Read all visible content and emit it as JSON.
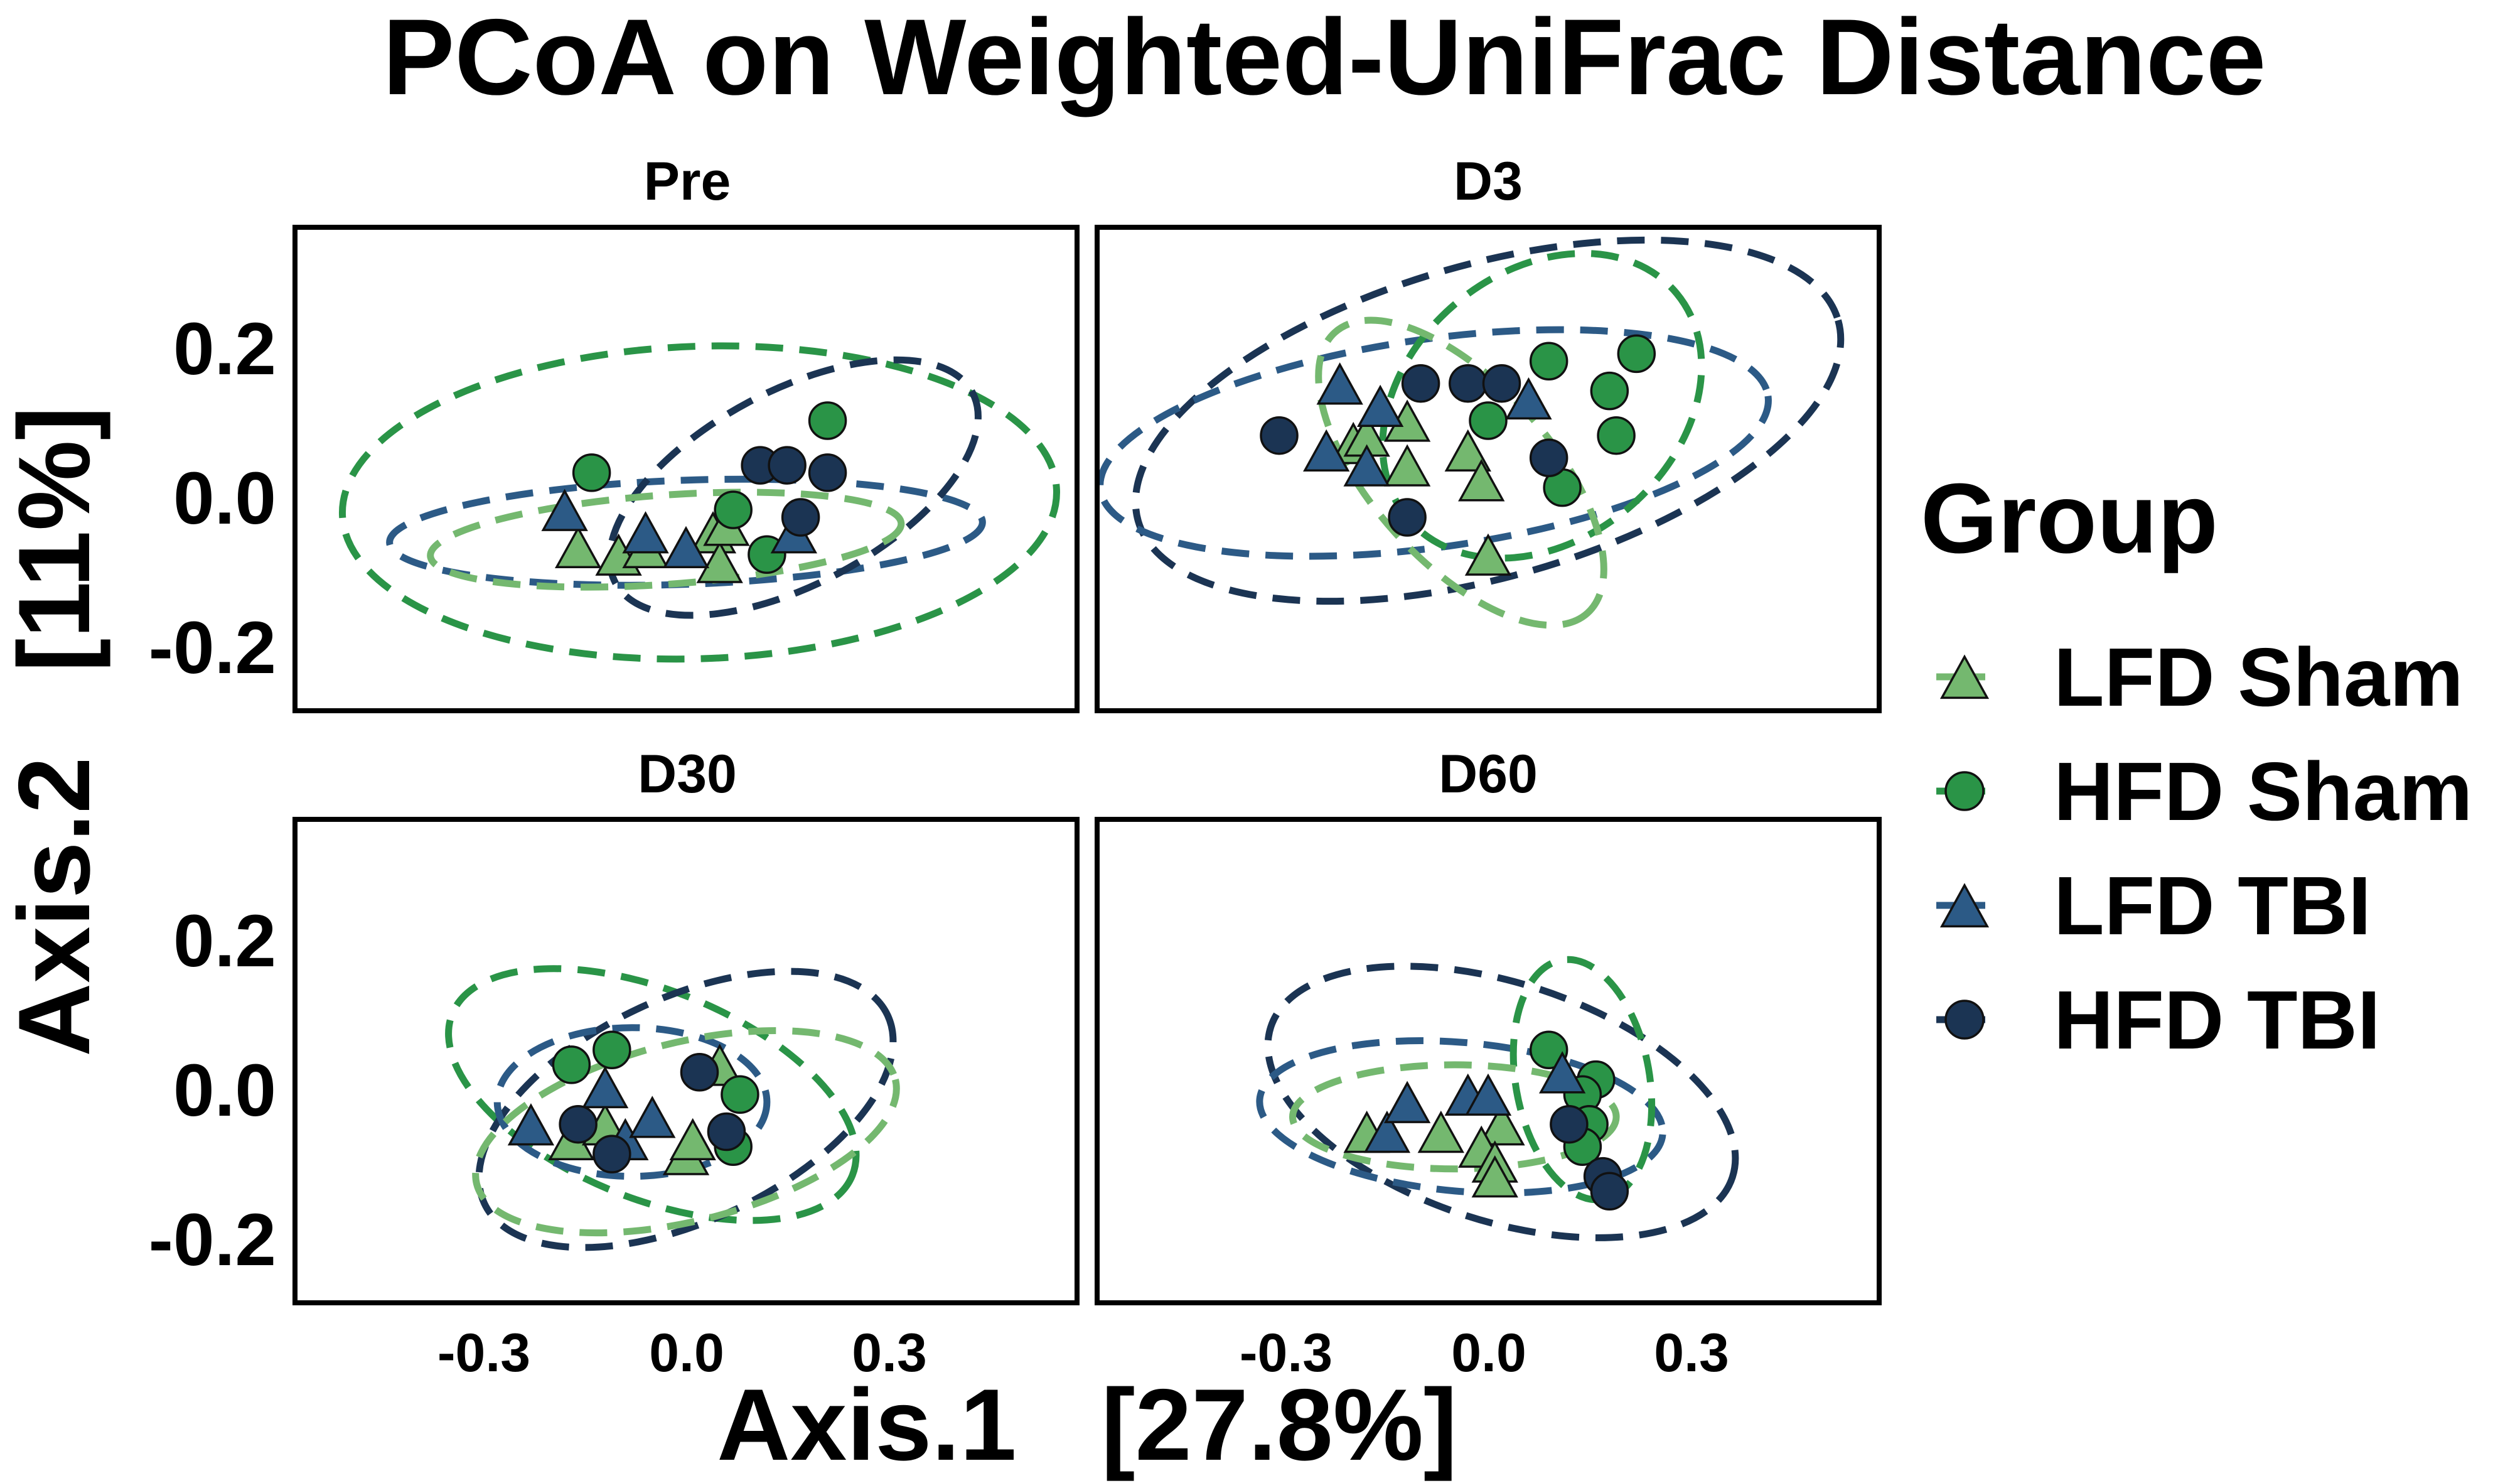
{
  "chart_data": {
    "type": "scatter",
    "title": "PCoA on Weighted-UniFrac Distance",
    "xlabel": "Axis.1   [27.8%]",
    "ylabel": "Axis.2   [11%]",
    "xlim": [
      -0.58,
      0.58
    ],
    "ylim": [
      -0.28,
      0.37
    ],
    "x_ticks": [
      -0.3,
      0.0,
      0.3
    ],
    "x_tick_labels": [
      "-0.3",
      "0.0",
      "0.3"
    ],
    "y_ticks": [
      -0.2,
      0.0,
      0.2
    ],
    "y_tick_labels": [
      "-0.2",
      "0.0",
      "0.2"
    ],
    "grid": false,
    "legend": {
      "title": "Group",
      "placement": "right"
    },
    "groups": [
      {
        "name": "LFD Sham",
        "marker": "triangle",
        "color": "#74b86f"
      },
      {
        "name": "HFD Sham",
        "marker": "circle",
        "color": "#2a9447"
      },
      {
        "name": "LFD TBI",
        "marker": "triangle",
        "color": "#2c5a86"
      },
      {
        "name": "HFD TBI",
        "marker": "circle",
        "color": "#1b3453"
      }
    ],
    "panels": [
      {
        "label": "Pre",
        "ellipses": [
          {
            "group": "HFD Sham",
            "cx": 0.02,
            "cy": 0.0,
            "rx": 0.53,
            "ry": 0.21,
            "angle": 2
          },
          {
            "group": "LFD TBI",
            "cx": 0.0,
            "cy": -0.04,
            "rx": 0.44,
            "ry": 0.07,
            "angle": 2
          },
          {
            "group": "HFD TBI",
            "cx": 0.16,
            "cy": 0.02,
            "rx": 0.3,
            "ry": 0.13,
            "angle": 28
          },
          {
            "group": "LFD Sham",
            "cx": -0.03,
            "cy": -0.05,
            "rx": 0.35,
            "ry": 0.06,
            "angle": 4
          }
        ],
        "points": [
          {
            "group": "LFD Sham",
            "x": -0.16,
            "y": -0.06
          },
          {
            "group": "LFD Sham",
            "x": -0.1,
            "y": -0.07
          },
          {
            "group": "LFD Sham",
            "x": -0.06,
            "y": -0.06
          },
          {
            "group": "LFD Sham",
            "x": 0.04,
            "y": -0.04
          },
          {
            "group": "LFD Sham",
            "x": 0.05,
            "y": -0.08
          },
          {
            "group": "LFD Sham",
            "x": 0.06,
            "y": -0.03
          },
          {
            "group": "HFD Sham",
            "x": -0.14,
            "y": 0.04
          },
          {
            "group": "HFD Sham",
            "x": 0.07,
            "y": -0.01
          },
          {
            "group": "HFD Sham",
            "x": 0.12,
            "y": -0.07
          },
          {
            "group": "HFD Sham",
            "x": 0.21,
            "y": 0.11
          },
          {
            "group": "LFD TBI",
            "x": -0.18,
            "y": -0.01
          },
          {
            "group": "LFD TBI",
            "x": -0.06,
            "y": -0.04
          },
          {
            "group": "LFD TBI",
            "x": 0.0,
            "y": -0.06
          },
          {
            "group": "LFD TBI",
            "x": 0.16,
            "y": -0.04
          },
          {
            "group": "HFD TBI",
            "x": 0.11,
            "y": 0.05
          },
          {
            "group": "HFD TBI",
            "x": 0.15,
            "y": 0.05
          },
          {
            "group": "HFD TBI",
            "x": 0.21,
            "y": 0.04
          },
          {
            "group": "HFD TBI",
            "x": 0.17,
            "y": -0.02
          }
        ]
      },
      {
        "label": "D3",
        "ellipses": [
          {
            "group": "HFD TBI",
            "cx": 0.0,
            "cy": 0.11,
            "rx": 0.54,
            "ry": 0.21,
            "angle": 16
          },
          {
            "group": "LFD TBI",
            "cx": -0.08,
            "cy": 0.08,
            "rx": 0.5,
            "ry": 0.14,
            "angle": 8
          },
          {
            "group": "HFD Sham",
            "cx": 0.08,
            "cy": 0.13,
            "rx": 0.26,
            "ry": 0.18,
            "angle": 40
          },
          {
            "group": "LFD Sham",
            "cx": -0.04,
            "cy": 0.04,
            "rx": 0.28,
            "ry": 0.12,
            "angle": -48
          }
        ],
        "points": [
          {
            "group": "LFD Sham",
            "x": -0.2,
            "y": 0.08
          },
          {
            "group": "LFD Sham",
            "x": -0.18,
            "y": 0.09
          },
          {
            "group": "LFD Sham",
            "x": -0.12,
            "y": 0.11
          },
          {
            "group": "LFD Sham",
            "x": -0.12,
            "y": 0.05
          },
          {
            "group": "LFD Sham",
            "x": -0.03,
            "y": 0.07
          },
          {
            "group": "LFD Sham",
            "x": -0.01,
            "y": 0.03
          },
          {
            "group": "LFD Sham",
            "x": 0.0,
            "y": -0.07
          },
          {
            "group": "HFD Sham",
            "x": 0.09,
            "y": 0.19
          },
          {
            "group": "HFD Sham",
            "x": 0.0,
            "y": 0.11
          },
          {
            "group": "HFD Sham",
            "x": 0.18,
            "y": 0.15
          },
          {
            "group": "HFD Sham",
            "x": 0.22,
            "y": 0.2
          },
          {
            "group": "HFD Sham",
            "x": 0.19,
            "y": 0.09
          },
          {
            "group": "HFD Sham",
            "x": 0.11,
            "y": 0.02
          },
          {
            "group": "LFD TBI",
            "x": -0.22,
            "y": 0.16
          },
          {
            "group": "LFD TBI",
            "x": -0.16,
            "y": 0.13
          },
          {
            "group": "LFD TBI",
            "x": -0.24,
            "y": 0.07
          },
          {
            "group": "LFD TBI",
            "x": -0.18,
            "y": 0.05
          },
          {
            "group": "LFD TBI",
            "x": 0.06,
            "y": 0.14
          },
          {
            "group": "HFD TBI",
            "x": -0.31,
            "y": 0.09
          },
          {
            "group": "HFD TBI",
            "x": -0.1,
            "y": 0.16
          },
          {
            "group": "HFD TBI",
            "x": -0.03,
            "y": 0.16
          },
          {
            "group": "HFD TBI",
            "x": 0.02,
            "y": 0.16
          },
          {
            "group": "HFD TBI",
            "x": 0.09,
            "y": 0.06
          },
          {
            "group": "HFD TBI",
            "x": -0.12,
            "y": -0.02
          }
        ]
      },
      {
        "label": "D30",
        "ellipses": [
          {
            "group": "HFD Sham",
            "cx": -0.05,
            "cy": 0.0,
            "rx": 0.32,
            "ry": 0.14,
            "angle": -22
          },
          {
            "group": "HFD TBI",
            "cx": 0.0,
            "cy": -0.02,
            "rx": 0.33,
            "ry": 0.15,
            "angle": 25
          },
          {
            "group": "LFD TBI",
            "cx": -0.08,
            "cy": -0.01,
            "rx": 0.2,
            "ry": 0.1,
            "angle": 0
          },
          {
            "group": "LFD Sham",
            "cx": 0.0,
            "cy": -0.05,
            "rx": 0.32,
            "ry": 0.12,
            "angle": 14
          }
        ],
        "points": [
          {
            "group": "LFD Sham",
            "x": -0.17,
            "y": -0.06
          },
          {
            "group": "LFD Sham",
            "x": -0.12,
            "y": -0.04
          },
          {
            "group": "LFD Sham",
            "x": 0.0,
            "y": -0.08
          },
          {
            "group": "LFD Sham",
            "x": 0.01,
            "y": -0.06
          },
          {
            "group": "LFD Sham",
            "x": 0.05,
            "y": 0.04
          },
          {
            "group": "HFD Sham",
            "x": -0.17,
            "y": 0.04
          },
          {
            "group": "HFD Sham",
            "x": -0.11,
            "y": 0.06
          },
          {
            "group": "HFD Sham",
            "x": 0.08,
            "y": 0.0
          },
          {
            "group": "HFD Sham",
            "x": 0.07,
            "y": -0.07
          },
          {
            "group": "LFD TBI",
            "x": -0.23,
            "y": -0.04
          },
          {
            "group": "LFD TBI",
            "x": -0.12,
            "y": 0.01
          },
          {
            "group": "LFD TBI",
            "x": -0.09,
            "y": -0.06
          },
          {
            "group": "LFD TBI",
            "x": -0.05,
            "y": -0.03
          },
          {
            "group": "HFD TBI",
            "x": -0.16,
            "y": -0.04
          },
          {
            "group": "HFD TBI",
            "x": -0.11,
            "y": -0.08
          },
          {
            "group": "HFD TBI",
            "x": 0.02,
            "y": 0.03
          },
          {
            "group": "HFD TBI",
            "x": 0.06,
            "y": -0.05
          }
        ]
      },
      {
        "label": "D60",
        "ellipses": [
          {
            "group": "HFD TBI",
            "cx": 0.02,
            "cy": -0.01,
            "rx": 0.36,
            "ry": 0.16,
            "angle": -18
          },
          {
            "group": "LFD TBI",
            "cx": -0.04,
            "cy": -0.03,
            "rx": 0.3,
            "ry": 0.1,
            "angle": -5
          },
          {
            "group": "HFD Sham",
            "cx": 0.14,
            "cy": 0.02,
            "rx": 0.18,
            "ry": 0.09,
            "angle": -80
          },
          {
            "group": "LFD Sham",
            "cx": -0.05,
            "cy": -0.03,
            "rx": 0.24,
            "ry": 0.07,
            "angle": 0
          }
        ],
        "points": [
          {
            "group": "LFD Sham",
            "x": -0.18,
            "y": -0.05
          },
          {
            "group": "LFD Sham",
            "x": -0.07,
            "y": -0.05
          },
          {
            "group": "LFD Sham",
            "x": 0.02,
            "y": -0.04
          },
          {
            "group": "LFD Sham",
            "x": -0.01,
            "y": -0.07
          },
          {
            "group": "LFD Sham",
            "x": 0.01,
            "y": -0.09
          },
          {
            "group": "LFD Sham",
            "x": 0.01,
            "y": -0.11
          },
          {
            "group": "HFD Sham",
            "x": 0.09,
            "y": 0.06
          },
          {
            "group": "HFD Sham",
            "x": 0.16,
            "y": 0.02
          },
          {
            "group": "HFD Sham",
            "x": 0.14,
            "y": 0.0
          },
          {
            "group": "HFD Sham",
            "x": 0.15,
            "y": -0.04
          },
          {
            "group": "HFD Sham",
            "x": 0.14,
            "y": -0.07
          },
          {
            "group": "LFD TBI",
            "x": -0.15,
            "y": -0.05
          },
          {
            "group": "LFD TBI",
            "x": -0.12,
            "y": -0.01
          },
          {
            "group": "LFD TBI",
            "x": -0.03,
            "y": 0.0
          },
          {
            "group": "LFD TBI",
            "x": 0.0,
            "y": 0.0
          },
          {
            "group": "LFD TBI",
            "x": 0.11,
            "y": 0.03
          },
          {
            "group": "HFD TBI",
            "x": 0.12,
            "y": -0.04
          },
          {
            "group": "HFD TBI",
            "x": 0.17,
            "y": -0.11
          },
          {
            "group": "HFD TBI",
            "x": 0.18,
            "y": -0.13
          }
        ]
      }
    ]
  }
}
